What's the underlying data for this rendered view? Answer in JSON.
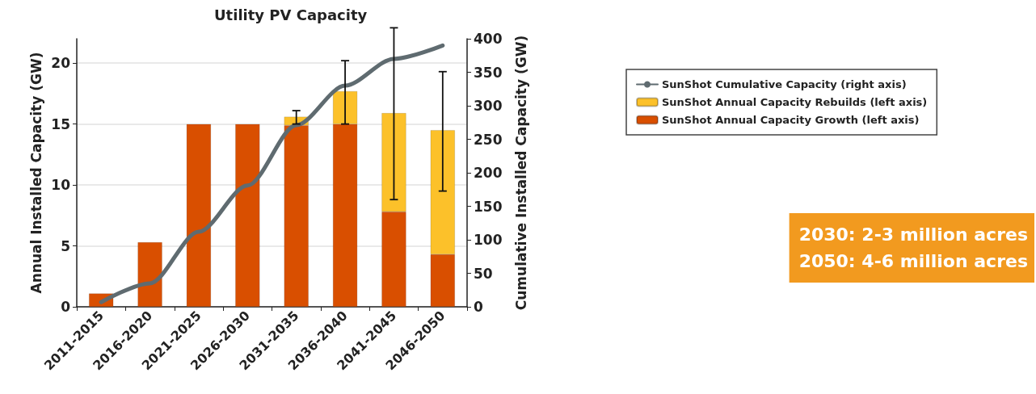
{
  "chart_data": {
    "type": "bar",
    "title": "Utility PV Capacity",
    "ylabel": "Annual Installed Capacity (GW)",
    "y2label": "Cumulative Installed Capacity (GW)",
    "categories": [
      "2011-2015",
      "2016-2020",
      "2021-2025",
      "2026-2030",
      "2031-2035",
      "2036-2040",
      "2041-2045",
      "2046-2050"
    ],
    "stacked": true,
    "series": [
      {
        "name": "SunShot Annual Capacity Growth (left axis)",
        "color": "#d94f00",
        "values": [
          1.1,
          5.3,
          15,
          15,
          14.9,
          15,
          7.8,
          4.3
        ]
      },
      {
        "name": "SunShot Annual Capacity Rebuilds (left axis)",
        "color": "#fcc12a",
        "values": [
          null,
          null,
          null,
          null,
          0.7,
          2.7,
          8.1,
          10.2
        ],
        "errors": [
          null,
          null,
          null,
          null,
          [
            15.0,
            16.1
          ],
          [
            15.0,
            20.2
          ],
          [
            8.8,
            22.9
          ],
          [
            9.5,
            19.3
          ]
        ]
      },
      {
        "name": "SunShot Cumulative Capacity (right axis)",
        "type": "line",
        "axis": "y2",
        "color": "#5f6b70",
        "marker": "none",
        "values": [
          7,
          35,
          112,
          181,
          271,
          330,
          370,
          390
        ]
      }
    ],
    "ylim": [
      0,
      22
    ],
    "yticks": [
      0,
      5,
      10,
      15,
      20
    ],
    "y2lim": [
      0,
      400
    ],
    "y2ticks": [
      0,
      50,
      100,
      150,
      200,
      250,
      300,
      350,
      400
    ],
    "grid": "y",
    "legend": "right",
    "annotations": [
      "2030: 2-3 million acres\n2050: 4-6 million acres"
    ]
  }
}
